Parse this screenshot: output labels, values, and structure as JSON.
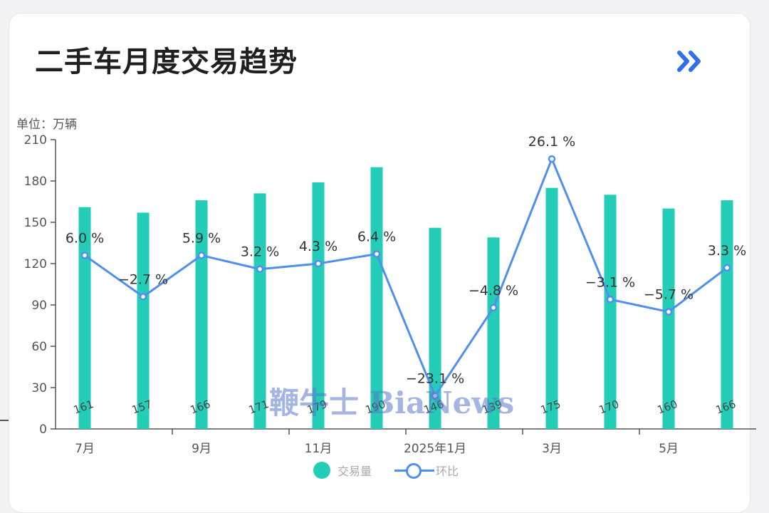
{
  "header": {
    "title": "二手车月度交易趋势",
    "more_icon": "double-chevron-right-icon"
  },
  "colors": {
    "bar": "#23cdb8",
    "line": "#4f8ff0",
    "more_icon": "#2f6fe8"
  },
  "watermark": "鞭牛士 BiaNews",
  "chart_data": {
    "type": "bar",
    "unit_label": "单位：万辆",
    "categories": [
      "7月",
      "",
      "9月",
      "",
      "11月",
      "",
      "2025年1月",
      "",
      "3月",
      "",
      "5月",
      ""
    ],
    "series": [
      {
        "name": "交易量",
        "type": "bar",
        "values": [
          161,
          157,
          166,
          171,
          179,
          190,
          146,
          139,
          175,
          170,
          160,
          166
        ],
        "labels": [
          "161",
          "157",
          "166",
          "171",
          "179",
          "190",
          "146",
          "139",
          "175",
          "170",
          "160",
          "166"
        ]
      },
      {
        "name": "环比",
        "type": "line",
        "values": [
          126,
          96,
          126,
          116,
          120,
          127,
          24,
          88,
          196,
          94,
          85,
          117
        ],
        "labels": [
          "6.0 %",
          "−2.7 %",
          "5.9 %",
          "3.2 %",
          "4.3 %",
          "6.4 %",
          "−23.1 %",
          "−4.8 %",
          "26.1 %",
          "−3.1 %",
          "−5.7 %",
          "3.3 %"
        ]
      }
    ],
    "ylim": [
      0,
      210
    ],
    "yticks": [
      "0",
      "30",
      "60",
      "90",
      "120",
      "150",
      "180",
      "210"
    ],
    "legend_position": "bottom-center"
  }
}
